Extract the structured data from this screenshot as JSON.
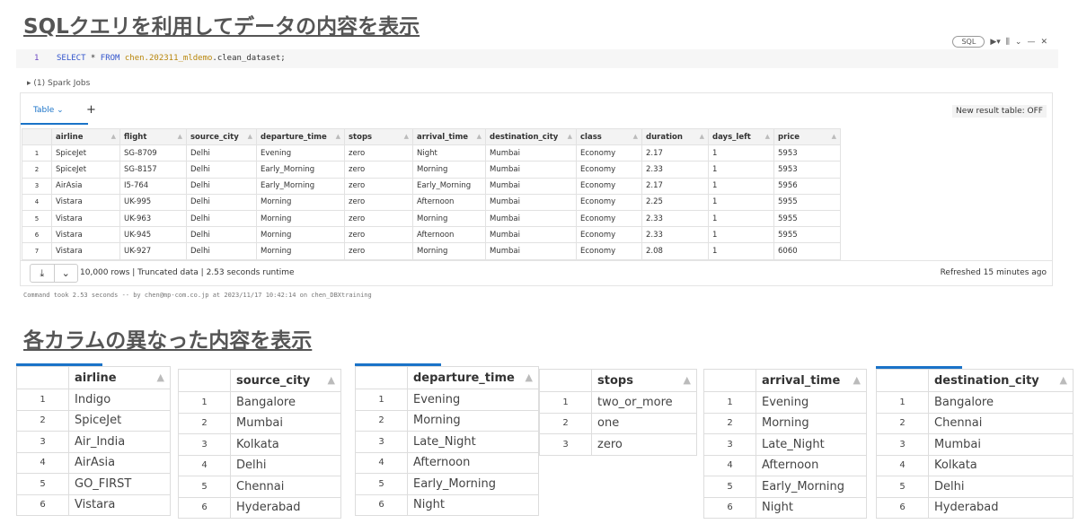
{
  "titles": {
    "section1": "SQLクエリを利用してデータの内容を表示",
    "section2": "各カラムの異なった内容を表示"
  },
  "cell": {
    "line_number": "1",
    "code_keyword1": "SELECT",
    "code_star": " * ",
    "code_keyword2": "FROM",
    "code_table": " chen.202311_mldemo",
    "code_rest": ".clean_dataset;",
    "lang_badge": "SQL",
    "run_icon": "play-icon",
    "chart_icon": "bar-chart-icon"
  },
  "spark_jobs": "▸ (1) Spark Jobs",
  "result": {
    "tab_label": "Table",
    "new_result_table": "New result table: OFF",
    "columns": [
      "airline",
      "flight",
      "source_city",
      "departure_time",
      "stops",
      "arrival_time",
      "destination_city",
      "class",
      "duration",
      "days_left",
      "price"
    ],
    "rows": [
      [
        "SpiceJet",
        "SG-8709",
        "Delhi",
        "Evening",
        "zero",
        "Night",
        "Mumbai",
        "Economy",
        "2.17",
        "1",
        "5953"
      ],
      [
        "SpiceJet",
        "SG-8157",
        "Delhi",
        "Early_Morning",
        "zero",
        "Morning",
        "Mumbai",
        "Economy",
        "2.33",
        "1",
        "5953"
      ],
      [
        "AirAsia",
        "I5-764",
        "Delhi",
        "Early_Morning",
        "zero",
        "Early_Morning",
        "Mumbai",
        "Economy",
        "2.17",
        "1",
        "5956"
      ],
      [
        "Vistara",
        "UK-995",
        "Delhi",
        "Morning",
        "zero",
        "Afternoon",
        "Mumbai",
        "Economy",
        "2.25",
        "1",
        "5955"
      ],
      [
        "Vistara",
        "UK-963",
        "Delhi",
        "Morning",
        "zero",
        "Morning",
        "Mumbai",
        "Economy",
        "2.33",
        "1",
        "5955"
      ],
      [
        "Vistara",
        "UK-945",
        "Delhi",
        "Morning",
        "zero",
        "Afternoon",
        "Mumbai",
        "Economy",
        "2.33",
        "1",
        "5955"
      ],
      [
        "Vistara",
        "UK-927",
        "Delhi",
        "Morning",
        "zero",
        "Morning",
        "Mumbai",
        "Economy",
        "2.08",
        "1",
        "6060"
      ]
    ],
    "footer_status": "10,000 rows  |  Truncated data  |  2.53 seconds runtime",
    "refreshed": "Refreshed 15 minutes ago"
  },
  "command_info": "Command took 2.53 seconds -- by chen@mp-com.co.jp at 2023/11/17 10:42:14 on chen_DBXtraining",
  "distinct_tables": [
    {
      "column": "airline",
      "values": [
        "Indigo",
        "SpiceJet",
        "Air_India",
        "AirAsia",
        "GO_FIRST",
        "Vistara"
      ]
    },
    {
      "column": "source_city",
      "values": [
        "Bangalore",
        "Mumbai",
        "Kolkata",
        "Delhi",
        "Chennai",
        "Hyderabad"
      ]
    },
    {
      "column": "departure_time",
      "values": [
        "Evening",
        "Morning",
        "Late_Night",
        "Afternoon",
        "Early_Morning",
        "Night"
      ]
    },
    {
      "column": "stops",
      "values": [
        "two_or_more",
        "one",
        "zero"
      ]
    },
    {
      "column": "arrival_time",
      "values": [
        "Evening",
        "Morning",
        "Late_Night",
        "Afternoon",
        "Early_Morning",
        "Night"
      ]
    },
    {
      "column": "destination_city",
      "values": [
        "Bangalore",
        "Chennai",
        "Mumbai",
        "Kolkata",
        "Delhi",
        "Hyderabad"
      ]
    }
  ],
  "accent_color": "#1a73c8"
}
